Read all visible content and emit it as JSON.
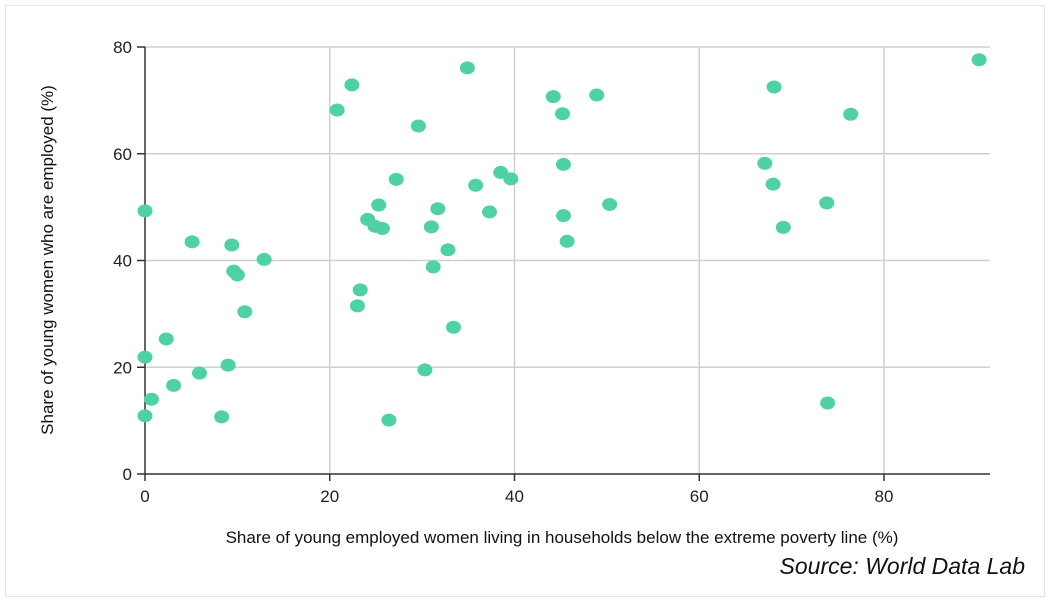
{
  "chart_data": {
    "type": "scatter",
    "title": "",
    "xlabel": "Share of young employed women living in households below the extreme poverty line (%)",
    "ylabel": "Share of young women who are employed (%)",
    "xlim": [
      0,
      90
    ],
    "ylim": [
      0,
      80
    ],
    "xticks": [
      0,
      20,
      40,
      60,
      80
    ],
    "yticks": [
      0,
      20,
      40,
      60,
      80
    ],
    "grid": true,
    "legend": "none",
    "point_color": "#4fd1a6",
    "source": "Source: World Data Lab",
    "points": [
      {
        "x": 0.0,
        "y": 49.3
      },
      {
        "x": 0.0,
        "y": 21.9
      },
      {
        "x": 0.0,
        "y": 10.9
      },
      {
        "x": 0.7,
        "y": 14.0
      },
      {
        "x": 2.3,
        "y": 25.3
      },
      {
        "x": 3.1,
        "y": 16.6
      },
      {
        "x": 5.1,
        "y": 43.5
      },
      {
        "x": 5.9,
        "y": 18.9
      },
      {
        "x": 8.3,
        "y": 10.7
      },
      {
        "x": 9.0,
        "y": 20.4
      },
      {
        "x": 9.4,
        "y": 42.9
      },
      {
        "x": 9.6,
        "y": 38.0
      },
      {
        "x": 10.0,
        "y": 37.3
      },
      {
        "x": 10.8,
        "y": 30.4
      },
      {
        "x": 12.9,
        "y": 40.2
      },
      {
        "x": 20.8,
        "y": 68.2
      },
      {
        "x": 22.4,
        "y": 72.9
      },
      {
        "x": 23.0,
        "y": 31.5
      },
      {
        "x": 23.3,
        "y": 34.5
      },
      {
        "x": 24.1,
        "y": 47.7
      },
      {
        "x": 24.9,
        "y": 46.4
      },
      {
        "x": 25.3,
        "y": 50.4
      },
      {
        "x": 25.7,
        "y": 46.0
      },
      {
        "x": 26.4,
        "y": 10.1
      },
      {
        "x": 27.2,
        "y": 55.2
      },
      {
        "x": 29.6,
        "y": 65.2
      },
      {
        "x": 30.3,
        "y": 19.5
      },
      {
        "x": 31.0,
        "y": 46.3
      },
      {
        "x": 31.2,
        "y": 38.8
      },
      {
        "x": 31.7,
        "y": 49.7
      },
      {
        "x": 32.8,
        "y": 42.0
      },
      {
        "x": 33.4,
        "y": 27.5
      },
      {
        "x": 34.9,
        "y": 76.1
      },
      {
        "x": 35.8,
        "y": 54.1
      },
      {
        "x": 37.3,
        "y": 49.1
      },
      {
        "x": 38.5,
        "y": 56.5
      },
      {
        "x": 39.6,
        "y": 55.3
      },
      {
        "x": 44.2,
        "y": 70.7
      },
      {
        "x": 45.2,
        "y": 67.5
      },
      {
        "x": 45.3,
        "y": 58.0
      },
      {
        "x": 45.3,
        "y": 48.4
      },
      {
        "x": 45.7,
        "y": 43.6
      },
      {
        "x": 48.9,
        "y": 71.0
      },
      {
        "x": 50.3,
        "y": 50.5
      },
      {
        "x": 67.1,
        "y": 58.2
      },
      {
        "x": 68.0,
        "y": 54.3
      },
      {
        "x": 68.1,
        "y": 72.5
      },
      {
        "x": 69.1,
        "y": 46.2
      },
      {
        "x": 73.8,
        "y": 50.8
      },
      {
        "x": 73.9,
        "y": 13.3
      },
      {
        "x": 76.4,
        "y": 67.4
      },
      {
        "x": 90.3,
        "y": 77.6
      }
    ]
  }
}
